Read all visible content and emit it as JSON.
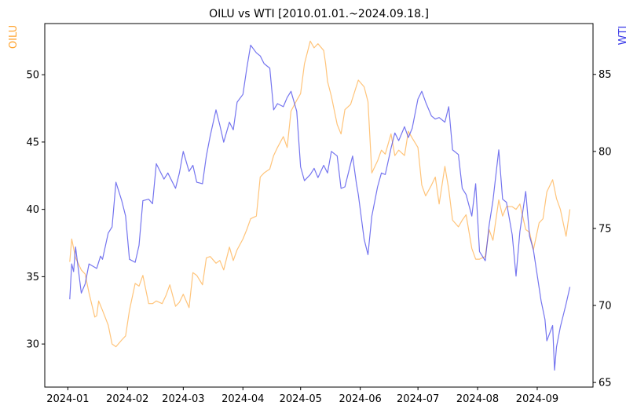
{
  "chart_data": {
    "type": "line",
    "title": "OILU vs WTI [2010.01.01.~2024.09.18.]",
    "ylabel_left": "OILU",
    "ylabel_right": "WTI",
    "colors": {
      "OILU": "#ffa533",
      "WTI": "#3a3ae8"
    },
    "x_ticks": [
      "2024-01",
      "2024-02",
      "2024-03",
      "2024-04",
      "2024-05",
      "2024-06",
      "2024-07",
      "2024-08",
      "2024-09"
    ],
    "x_tick_dates": [
      "2024-01-01",
      "2024-02-01",
      "2024-03-01",
      "2024-04-01",
      "2024-05-01",
      "2024-06-01",
      "2024-07-01",
      "2024-08-01",
      "2024-09-01"
    ],
    "xlim": [
      "2023-12-20",
      "2024-09-30"
    ],
    "ylim_left": [
      26.8,
      53.8
    ],
    "ylim_right": [
      64.7,
      88.3
    ],
    "yticks_left": [
      30,
      35,
      40,
      45,
      50
    ],
    "yticks_right": [
      65,
      70,
      75,
      80,
      85
    ],
    "grid": false,
    "series": [
      {
        "name": "OILU",
        "axis": "left",
        "points": [
          [
            "2024-01-02",
            36.1
          ],
          [
            "2024-01-03",
            37.8
          ],
          [
            "2024-01-05",
            36.4
          ],
          [
            "2024-01-08",
            35.5
          ],
          [
            "2024-01-10",
            35.2
          ],
          [
            "2024-01-12",
            33.8
          ],
          [
            "2024-01-15",
            32.0
          ],
          [
            "2024-01-16",
            32.1
          ],
          [
            "2024-01-17",
            33.2
          ],
          [
            "2024-01-19",
            32.5
          ],
          [
            "2024-01-22",
            31.4
          ],
          [
            "2024-01-24",
            30.0
          ],
          [
            "2024-01-26",
            29.8
          ],
          [
            "2024-01-29",
            30.3
          ],
          [
            "2024-01-31",
            30.6
          ],
          [
            "2024-02-02",
            32.5
          ],
          [
            "2024-02-05",
            34.5
          ],
          [
            "2024-02-07",
            34.3
          ],
          [
            "2024-02-09",
            35.1
          ],
          [
            "2024-02-12",
            33.0
          ],
          [
            "2024-02-14",
            33.0
          ],
          [
            "2024-02-16",
            33.2
          ],
          [
            "2024-02-19",
            33.0
          ],
          [
            "2024-02-21",
            33.6
          ],
          [
            "2024-02-23",
            34.4
          ],
          [
            "2024-02-26",
            32.8
          ],
          [
            "2024-02-28",
            33.1
          ],
          [
            "2024-03-01",
            33.7
          ],
          [
            "2024-03-04",
            32.7
          ],
          [
            "2024-03-06",
            35.3
          ],
          [
            "2024-03-08",
            35.1
          ],
          [
            "2024-03-11",
            34.4
          ],
          [
            "2024-03-13",
            36.4
          ],
          [
            "2024-03-15",
            36.5
          ],
          [
            "2024-03-18",
            36.0
          ],
          [
            "2024-03-20",
            36.2
          ],
          [
            "2024-03-22",
            35.5
          ],
          [
            "2024-03-25",
            37.2
          ],
          [
            "2024-03-27",
            36.2
          ],
          [
            "2024-03-29",
            37.0
          ],
          [
            "2024-04-01",
            37.8
          ],
          [
            "2024-04-03",
            38.5
          ],
          [
            "2024-04-05",
            39.3
          ],
          [
            "2024-04-08",
            39.5
          ],
          [
            "2024-04-10",
            42.4
          ],
          [
            "2024-04-12",
            42.7
          ],
          [
            "2024-04-15",
            43.0
          ],
          [
            "2024-04-17",
            44.0
          ],
          [
            "2024-04-19",
            44.6
          ],
          [
            "2024-04-22",
            45.4
          ],
          [
            "2024-04-24",
            44.6
          ],
          [
            "2024-04-26",
            47.3
          ],
          [
            "2024-04-29",
            48.1
          ],
          [
            "2024-05-01",
            48.6
          ],
          [
            "2024-05-03",
            50.8
          ],
          [
            "2024-05-06",
            52.5
          ],
          [
            "2024-05-08",
            52.0
          ],
          [
            "2024-05-10",
            52.3
          ],
          [
            "2024-05-13",
            51.8
          ],
          [
            "2024-05-14",
            50.8
          ],
          [
            "2024-05-15",
            49.5
          ],
          [
            "2024-05-17",
            48.4
          ],
          [
            "2024-05-20",
            46.3
          ],
          [
            "2024-05-22",
            45.6
          ],
          [
            "2024-05-24",
            47.4
          ],
          [
            "2024-05-27",
            47.8
          ],
          [
            "2024-05-29",
            48.7
          ],
          [
            "2024-05-31",
            49.6
          ],
          [
            "2024-06-03",
            49.1
          ],
          [
            "2024-06-05",
            48.0
          ],
          [
            "2024-06-07",
            42.7
          ],
          [
            "2024-06-10",
            43.6
          ],
          [
            "2024-06-12",
            44.4
          ],
          [
            "2024-06-14",
            44.1
          ],
          [
            "2024-06-17",
            45.6
          ],
          [
            "2024-06-19",
            44.0
          ],
          [
            "2024-06-21",
            44.4
          ],
          [
            "2024-06-24",
            44.0
          ],
          [
            "2024-06-26",
            45.8
          ],
          [
            "2024-06-28",
            45.3
          ],
          [
            "2024-07-01",
            44.6
          ],
          [
            "2024-07-03",
            41.8
          ],
          [
            "2024-07-05",
            41.0
          ],
          [
            "2024-07-08",
            41.8
          ],
          [
            "2024-07-10",
            42.4
          ],
          [
            "2024-07-12",
            40.4
          ],
          [
            "2024-07-15",
            43.2
          ],
          [
            "2024-07-17",
            41.5
          ],
          [
            "2024-07-19",
            39.2
          ],
          [
            "2024-07-22",
            38.7
          ],
          [
            "2024-07-24",
            39.2
          ],
          [
            "2024-07-26",
            39.6
          ],
          [
            "2024-07-29",
            37.1
          ],
          [
            "2024-07-31",
            36.3
          ],
          [
            "2024-08-02",
            36.3
          ],
          [
            "2024-08-05",
            36.5
          ],
          [
            "2024-08-07",
            38.5
          ],
          [
            "2024-08-09",
            37.7
          ],
          [
            "2024-08-12",
            40.7
          ],
          [
            "2024-08-14",
            39.5
          ],
          [
            "2024-08-16",
            40.2
          ],
          [
            "2024-08-19",
            40.2
          ],
          [
            "2024-08-21",
            40.0
          ],
          [
            "2024-08-23",
            40.4
          ],
          [
            "2024-08-26",
            38.5
          ],
          [
            "2024-08-28",
            38.3
          ],
          [
            "2024-08-30",
            37.0
          ],
          [
            "2024-09-02",
            39.0
          ],
          [
            "2024-09-04",
            39.3
          ],
          [
            "2024-09-06",
            41.3
          ],
          [
            "2024-09-09",
            42.2
          ],
          [
            "2024-09-11",
            40.8
          ],
          [
            "2024-09-13",
            40.0
          ],
          [
            "2024-09-16",
            38.0
          ],
          [
            "2024-09-18",
            40.0
          ]
        ]
      },
      {
        "name": "WTI",
        "axis": "right",
        "points": [
          [
            "2024-01-02",
            70.4
          ],
          [
            "2024-01-03",
            72.7
          ],
          [
            "2024-01-04",
            72.2
          ],
          [
            "2024-01-05",
            73.8
          ],
          [
            "2024-01-08",
            70.8
          ],
          [
            "2024-01-10",
            71.4
          ],
          [
            "2024-01-12",
            72.7
          ],
          [
            "2024-01-16",
            72.4
          ],
          [
            "2024-01-18",
            73.2
          ],
          [
            "2024-01-19",
            73.0
          ],
          [
            "2024-01-22",
            74.7
          ],
          [
            "2024-01-24",
            75.1
          ],
          [
            "2024-01-26",
            78.0
          ],
          [
            "2024-01-29",
            76.8
          ],
          [
            "2024-01-31",
            75.8
          ],
          [
            "2024-02-02",
            73.0
          ],
          [
            "2024-02-05",
            72.8
          ],
          [
            "2024-02-07",
            73.9
          ],
          [
            "2024-02-09",
            76.8
          ],
          [
            "2024-02-12",
            76.9
          ],
          [
            "2024-02-14",
            76.6
          ],
          [
            "2024-02-16",
            79.2
          ],
          [
            "2024-02-20",
            78.2
          ],
          [
            "2024-02-22",
            78.6
          ],
          [
            "2024-02-26",
            77.6
          ],
          [
            "2024-02-28",
            78.6
          ],
          [
            "2024-03-01",
            80.0
          ],
          [
            "2024-03-04",
            78.7
          ],
          [
            "2024-03-06",
            79.1
          ],
          [
            "2024-03-08",
            78.0
          ],
          [
            "2024-03-11",
            77.9
          ],
          [
            "2024-03-13",
            79.7
          ],
          [
            "2024-03-15",
            81.0
          ],
          [
            "2024-03-18",
            82.7
          ],
          [
            "2024-03-20",
            81.7
          ],
          [
            "2024-03-22",
            80.6
          ],
          [
            "2024-03-25",
            81.9
          ],
          [
            "2024-03-27",
            81.4
          ],
          [
            "2024-03-29",
            83.2
          ],
          [
            "2024-04-01",
            83.7
          ],
          [
            "2024-04-03",
            85.4
          ],
          [
            "2024-04-05",
            86.9
          ],
          [
            "2024-04-08",
            86.4
          ],
          [
            "2024-04-10",
            86.2
          ],
          [
            "2024-04-12",
            85.7
          ],
          [
            "2024-04-15",
            85.4
          ],
          [
            "2024-04-17",
            82.7
          ],
          [
            "2024-04-19",
            83.1
          ],
          [
            "2024-04-22",
            82.9
          ],
          [
            "2024-04-24",
            83.5
          ],
          [
            "2024-04-26",
            83.9
          ],
          [
            "2024-04-29",
            82.6
          ],
          [
            "2024-05-01",
            79.0
          ],
          [
            "2024-05-03",
            78.1
          ],
          [
            "2024-05-06",
            78.5
          ],
          [
            "2024-05-08",
            78.9
          ],
          [
            "2024-05-10",
            78.3
          ],
          [
            "2024-05-13",
            79.1
          ],
          [
            "2024-05-15",
            78.6
          ],
          [
            "2024-05-17",
            80.0
          ],
          [
            "2024-05-20",
            79.7
          ],
          [
            "2024-05-22",
            77.6
          ],
          [
            "2024-05-24",
            77.7
          ],
          [
            "2024-05-28",
            79.7
          ],
          [
            "2024-05-30",
            77.9
          ],
          [
            "2024-05-31",
            77.2
          ],
          [
            "2024-06-03",
            74.3
          ],
          [
            "2024-06-05",
            73.3
          ],
          [
            "2024-06-07",
            75.8
          ],
          [
            "2024-06-10",
            77.7
          ],
          [
            "2024-06-12",
            78.6
          ],
          [
            "2024-06-14",
            78.5
          ],
          [
            "2024-06-17",
            80.2
          ],
          [
            "2024-06-19",
            81.2
          ],
          [
            "2024-06-21",
            80.7
          ],
          [
            "2024-06-24",
            81.6
          ],
          [
            "2024-06-26",
            80.9
          ],
          [
            "2024-06-28",
            81.5
          ],
          [
            "2024-07-01",
            83.4
          ],
          [
            "2024-07-03",
            83.9
          ],
          [
            "2024-07-05",
            83.2
          ],
          [
            "2024-07-08",
            82.3
          ],
          [
            "2024-07-10",
            82.1
          ],
          [
            "2024-07-12",
            82.2
          ],
          [
            "2024-07-15",
            81.9
          ],
          [
            "2024-07-17",
            82.9
          ],
          [
            "2024-07-19",
            80.1
          ],
          [
            "2024-07-22",
            79.8
          ],
          [
            "2024-07-24",
            77.6
          ],
          [
            "2024-07-26",
            77.2
          ],
          [
            "2024-07-29",
            75.8
          ],
          [
            "2024-07-31",
            77.9
          ],
          [
            "2024-08-02",
            73.5
          ],
          [
            "2024-08-05",
            72.9
          ],
          [
            "2024-08-07",
            75.2
          ],
          [
            "2024-08-09",
            76.8
          ],
          [
            "2024-08-12",
            80.1
          ],
          [
            "2024-08-14",
            76.9
          ],
          [
            "2024-08-16",
            76.7
          ],
          [
            "2024-08-19",
            74.6
          ],
          [
            "2024-08-21",
            71.9
          ],
          [
            "2024-08-23",
            74.8
          ],
          [
            "2024-08-26",
            77.4
          ],
          [
            "2024-08-28",
            74.5
          ],
          [
            "2024-08-30",
            73.6
          ],
          [
            "2024-09-03",
            70.3
          ],
          [
            "2024-09-05",
            69.1
          ],
          [
            "2024-09-06",
            67.7
          ],
          [
            "2024-09-09",
            68.7
          ],
          [
            "2024-09-10",
            65.8
          ],
          [
            "2024-09-11",
            67.3
          ],
          [
            "2024-09-13",
            68.6
          ],
          [
            "2024-09-16",
            70.1
          ],
          [
            "2024-09-18",
            71.2
          ]
        ]
      }
    ]
  }
}
